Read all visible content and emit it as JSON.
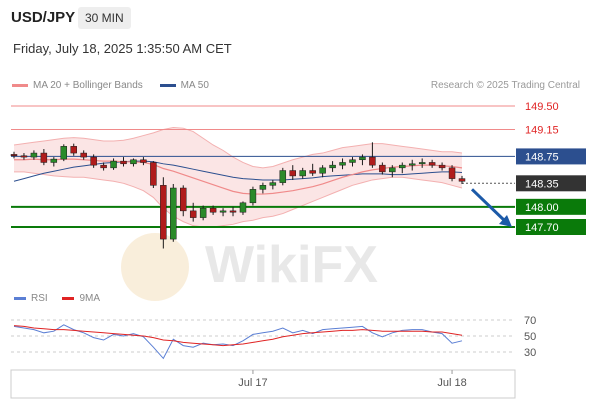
{
  "header": {
    "pair": "USD/JPY",
    "timeframe": "30 MIN"
  },
  "date_line": "Friday, July 18, 2025 1:35:50 AM CET",
  "legend": {
    "ma20_label": "MA 20 + Bollinger Bands",
    "ma20_color": "#f08a8a",
    "ma50_label": "MA 50",
    "ma50_color": "#2c4f8f"
  },
  "credit": "Research © 2025 Trading Central",
  "rsi_legend": {
    "rsi_label": "RSI",
    "rsi_color": "#5b7fd4",
    "ma_label": "9MA",
    "ma_color": "#e02424"
  },
  "watermark": "WikiFX",
  "chart_data": {
    "type": "candlestick",
    "price_axis": {
      "ylim": [
        147.3,
        149.7
      ]
    },
    "levels": [
      {
        "value": 149.5,
        "label": "149.50",
        "kind": "resistance"
      },
      {
        "value": 149.15,
        "label": "149.15",
        "kind": "resistance"
      },
      {
        "value": 148.75,
        "label": "148.75",
        "kind": "pivot"
      },
      {
        "value": 148.35,
        "label": "148.35",
        "kind": "current"
      },
      {
        "value": 148.0,
        "label": "148.00",
        "kind": "target"
      },
      {
        "value": 147.7,
        "label": "147.70",
        "kind": "target"
      }
    ],
    "x_ticks": [
      "Jul 17",
      "Jul 18"
    ],
    "x_tick_index": [
      24,
      44
    ],
    "candles": [
      [
        148.78,
        148.82,
        148.72,
        148.76
      ],
      [
        148.76,
        148.8,
        148.7,
        148.74
      ],
      [
        148.74,
        148.84,
        148.7,
        148.8
      ],
      [
        148.8,
        148.86,
        148.62,
        148.66
      ],
      [
        148.66,
        148.74,
        148.6,
        148.71
      ],
      [
        148.71,
        148.93,
        148.68,
        148.9
      ],
      [
        148.9,
        148.94,
        148.76,
        148.8
      ],
      [
        148.8,
        148.84,
        148.7,
        148.74
      ],
      [
        148.74,
        148.78,
        148.58,
        148.62
      ],
      [
        148.62,
        148.66,
        148.54,
        148.58
      ],
      [
        148.58,
        148.72,
        148.55,
        148.68
      ],
      [
        148.68,
        148.74,
        148.6,
        148.64
      ],
      [
        148.64,
        148.72,
        148.6,
        148.7
      ],
      [
        148.7,
        148.74,
        148.62,
        148.66
      ],
      [
        148.66,
        148.68,
        148.28,
        148.32
      ],
      [
        148.32,
        148.44,
        147.38,
        147.52
      ],
      [
        147.52,
        148.34,
        147.48,
        148.28
      ],
      [
        148.28,
        148.32,
        147.86,
        147.94
      ],
      [
        147.94,
        148.06,
        147.78,
        147.84
      ],
      [
        147.84,
        148.02,
        147.8,
        147.98
      ],
      [
        147.98,
        148.02,
        147.88,
        147.92
      ],
      [
        147.92,
        147.98,
        147.86,
        147.94
      ],
      [
        147.94,
        148.0,
        147.86,
        147.92
      ],
      [
        147.92,
        148.08,
        147.88,
        148.06
      ],
      [
        148.06,
        148.3,
        148.02,
        148.26
      ],
      [
        148.26,
        148.36,
        148.2,
        148.32
      ],
      [
        148.32,
        148.4,
        148.26,
        148.36
      ],
      [
        148.36,
        148.58,
        148.32,
        148.54
      ],
      [
        148.54,
        148.62,
        148.4,
        148.46
      ],
      [
        148.46,
        148.58,
        148.42,
        148.54
      ],
      [
        148.54,
        148.64,
        148.46,
        148.5
      ],
      [
        148.5,
        148.62,
        148.44,
        148.58
      ],
      [
        148.58,
        148.68,
        148.52,
        148.62
      ],
      [
        148.62,
        148.72,
        148.56,
        148.66
      ],
      [
        148.66,
        148.74,
        148.6,
        148.7
      ],
      [
        148.7,
        148.78,
        148.62,
        148.74
      ],
      [
        148.74,
        148.96,
        148.58,
        148.62
      ],
      [
        148.62,
        148.66,
        148.48,
        148.52
      ],
      [
        148.52,
        148.62,
        148.44,
        148.58
      ],
      [
        148.58,
        148.66,
        148.5,
        148.62
      ],
      [
        148.62,
        148.7,
        148.54,
        148.64
      ],
      [
        148.64,
        148.72,
        148.58,
        148.66
      ],
      [
        148.66,
        148.7,
        148.58,
        148.62
      ],
      [
        148.62,
        148.66,
        148.54,
        148.58
      ],
      [
        148.58,
        148.62,
        148.38,
        148.42
      ],
      [
        148.42,
        148.46,
        148.34,
        148.38
      ]
    ],
    "ma20": [
      148.7,
      148.7,
      148.71,
      148.7,
      148.7,
      148.71,
      148.71,
      148.7,
      148.69,
      148.68,
      148.68,
      148.67,
      148.67,
      148.66,
      148.63,
      148.57,
      148.53,
      148.48,
      148.43,
      148.38,
      148.33,
      148.28,
      148.23,
      148.2,
      148.19,
      148.19,
      148.2,
      148.22,
      148.24,
      148.27,
      148.3,
      148.34,
      148.39,
      148.44,
      148.48,
      148.52,
      148.55,
      148.57,
      148.59,
      148.6,
      148.61,
      148.62,
      148.62,
      148.61,
      148.6,
      148.58
    ],
    "ma50": [
      148.38,
      148.42,
      148.46,
      148.5,
      148.53,
      148.56,
      148.59,
      148.61,
      148.63,
      148.65,
      148.66,
      148.67,
      148.68,
      148.68,
      148.67,
      148.64,
      148.62,
      148.59,
      148.56,
      148.53,
      148.5,
      148.47,
      148.44,
      148.42,
      148.41,
      148.4,
      148.4,
      148.4,
      148.41,
      148.42,
      148.43,
      148.45,
      148.46,
      148.47,
      148.48,
      148.49,
      148.49,
      148.49,
      148.48,
      148.48,
      148.49,
      148.5,
      148.51,
      148.52,
      148.52,
      148.51
    ],
    "bb_upper": [
      148.92,
      148.94,
      148.96,
      148.98,
      149.0,
      149.02,
      149.03,
      149.02,
      149.0,
      148.98,
      148.98,
      148.99,
      149.02,
      149.06,
      149.1,
      149.15,
      149.18,
      149.17,
      149.12,
      149.02,
      148.92,
      148.84,
      148.74,
      148.66,
      148.6,
      148.58,
      148.6,
      148.65,
      148.7,
      148.74,
      148.78,
      148.8,
      148.84,
      148.88,
      148.9,
      148.92,
      148.94,
      148.94,
      148.92,
      148.9,
      148.88,
      148.86,
      148.84,
      148.82,
      148.82,
      148.8
    ],
    "bb_lower": [
      148.52,
      148.52,
      148.5,
      148.48,
      148.46,
      148.45,
      148.44,
      148.44,
      148.42,
      148.4,
      148.38,
      148.35,
      148.3,
      148.24,
      148.14,
      147.98,
      147.86,
      147.78,
      147.72,
      147.7,
      147.7,
      147.72,
      147.74,
      147.78,
      147.8,
      147.84,
      147.86,
      147.9,
      147.96,
      148.02,
      148.08,
      148.14,
      148.2,
      148.26,
      148.32,
      148.36,
      148.4,
      148.42,
      148.44,
      148.44,
      148.42,
      148.4,
      148.38,
      148.36,
      148.32,
      148.28
    ],
    "forecast_arrow": {
      "from": 148.35,
      "to": 147.7
    },
    "rsi_axis": {
      "ylim": [
        20,
        80
      ],
      "ticks": [
        70,
        50,
        30
      ]
    },
    "rsi": [
      62,
      60,
      58,
      54,
      56,
      64,
      58,
      54,
      48,
      45,
      52,
      50,
      53,
      49,
      36,
      22,
      46,
      38,
      36,
      41,
      39,
      40,
      38,
      44,
      52,
      54,
      56,
      60,
      54,
      57,
      53,
      58,
      59,
      60,
      61,
      62,
      54,
      49,
      54,
      57,
      58,
      58,
      55,
      53,
      41,
      44
    ],
    "rsi_ma": [
      63,
      62,
      60,
      59,
      58,
      58,
      57,
      56,
      55,
      54,
      53,
      52,
      51,
      50,
      48,
      45,
      44,
      42,
      41,
      40,
      39,
      38,
      39,
      40,
      42,
      44,
      46,
      49,
      51,
      53,
      54,
      55,
      56,
      57,
      57,
      58,
      57,
      56,
      56,
      56,
      56,
      56,
      55,
      55,
      53,
      51
    ]
  }
}
